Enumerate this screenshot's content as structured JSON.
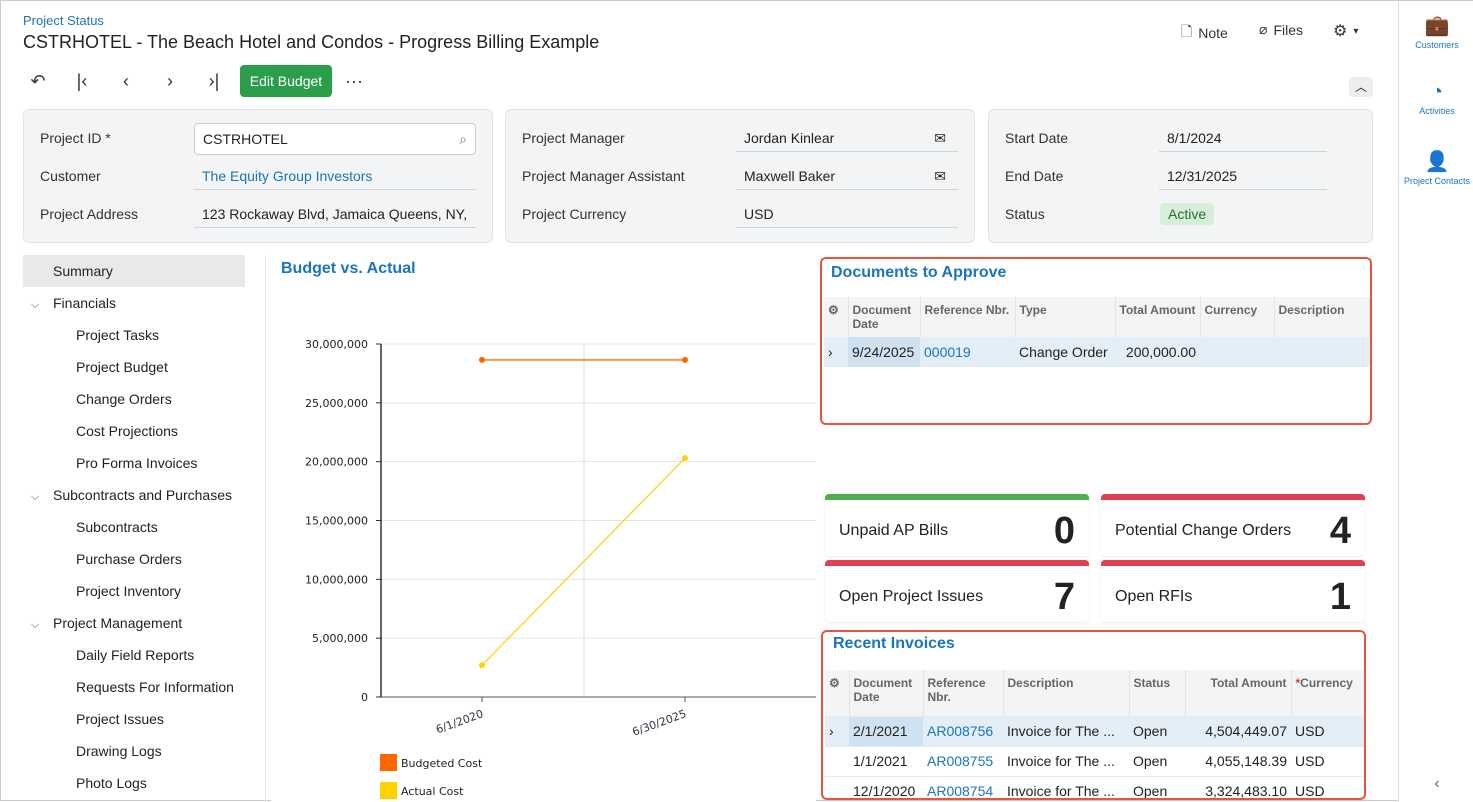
{
  "header": {
    "breadcrumb": "Project Status",
    "title": "CSTRHOTEL - The Beach Hotel and Condos - Progress Billing Example",
    "note": "Note",
    "files": "Files",
    "edit_budget": "Edit Budget",
    "more": "···"
  },
  "summary": {
    "project_id_label": "Project ID *",
    "project_id": "CSTRHOTEL",
    "customer_label": "Customer",
    "customer": "The Equity Group Investors",
    "address_label": "Project Address",
    "address": "123 Rockaway Blvd, Jamaica Queens, NY,",
    "pm_label": "Project Manager",
    "pm": "Jordan Kinlear",
    "pma_label": "Project Manager Assistant",
    "pma": "Maxwell Baker",
    "currency_label": "Project Currency",
    "currency": "USD",
    "start_label": "Start Date",
    "start": "8/1/2024",
    "end_label": "End Date",
    "end": "12/31/2025",
    "status_label": "Status",
    "status": "Active"
  },
  "nav": {
    "items": [
      "Summary",
      "Financials",
      "Project Tasks",
      "Project Budget",
      "Change Orders",
      "Cost Projections",
      "Pro Forma Invoices",
      "Subcontracts and Purchases",
      "Subcontracts",
      "Purchase Orders",
      "Project Inventory",
      "Project Management",
      "Daily Field Reports",
      "Requests For Information",
      "Project Issues",
      "Drawing Logs",
      "Photo Logs"
    ]
  },
  "chart_data": {
    "type": "line",
    "title": "Budget vs. Actual",
    "categories": [
      "6/1/2020",
      "6/30/2025"
    ],
    "ylim": [
      0,
      30000000
    ],
    "yticks": [
      "0",
      "5,000,000",
      "10,000,000",
      "15,000,000",
      "20,000,000",
      "25,000,000",
      "30,000,000"
    ],
    "series": [
      {
        "name": "Budgeted Cost",
        "color": "#ff6600",
        "values": [
          28650000,
          28650000
        ]
      },
      {
        "name": "Actual Cost",
        "color": "#ffd200",
        "values": [
          2700000,
          20300000
        ]
      }
    ],
    "legend": "bottom-left",
    "grid": true
  },
  "docs": {
    "title": "Documents to Approve",
    "headers": [
      "Document Date",
      "Reference Nbr.",
      "Type",
      "Total Amount",
      "Currency",
      "Description"
    ],
    "rows": [
      {
        "date": "9/24/2025",
        "ref": "000019",
        "type": "Change Order",
        "amount": "200,000.00",
        "currency": "",
        "desc": ""
      }
    ]
  },
  "cards": [
    {
      "label": "Unpaid AP Bills",
      "value": "0",
      "color": "#4caf50"
    },
    {
      "label": "Potential Change Orders",
      "value": "4",
      "color": "#e04050"
    },
    {
      "label": "Open Project Issues",
      "value": "7",
      "color": "#e04050"
    },
    {
      "label": "Open RFIs",
      "value": "1",
      "color": "#e04050"
    }
  ],
  "invoices": {
    "title": "Recent Invoices",
    "headers": [
      "Document Date",
      "Reference Nbr.",
      "Description",
      "Status",
      "Total Amount",
      "Currency"
    ],
    "rows": [
      {
        "date": "2/1/2021",
        "ref": "AR008756",
        "desc": "Invoice for The ...",
        "status": "Open",
        "amount": "4,504,449.07",
        "currency": "USD"
      },
      {
        "date": "1/1/2021",
        "ref": "AR008755",
        "desc": "Invoice for The ...",
        "status": "Open",
        "amount": "4,055,148.39",
        "currency": "USD"
      },
      {
        "date": "12/1/2020",
        "ref": "AR008754",
        "desc": "Invoice for The ...",
        "status": "Open",
        "amount": "3,324,483.10",
        "currency": "USD"
      }
    ]
  },
  "rightbar": {
    "customers": "Customers",
    "activities": "Activities",
    "contacts": "Project Contacts"
  }
}
